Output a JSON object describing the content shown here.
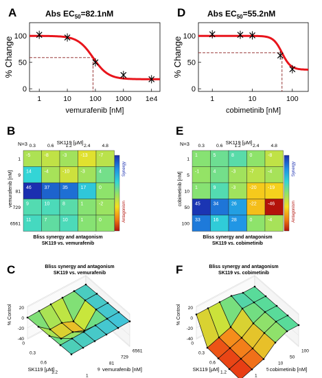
{
  "panels": {
    "A": {
      "letter": "A",
      "title_main": "Abs EC",
      "title_sub": "50",
      "title_value": "=82.1nM"
    },
    "B": {
      "letter": "B",
      "n_label": "N=3",
      "col_title": "SK119 [μM]",
      "row_title": "vemurafenib [nM]",
      "caption_line1": "Bliss synergy and antagonism",
      "caption_line2": "SK119 vs. vemurafenib",
      "synergy_label": "Synergy",
      "antagonism_label": "Antagonism"
    },
    "C": {
      "letter": "C",
      "title_line1": "Bliss synergy and antagonism",
      "title_line2": "SK119 vs. vemurafenib",
      "z_label": "% Control",
      "x_label": "SK119 [μM]",
      "y_label": "vemurafenib [nM]"
    },
    "D": {
      "letter": "D",
      "title_main": "Abs EC",
      "title_sub": "50",
      "title_value": "=55.2nM"
    },
    "E": {
      "letter": "E",
      "n_label": "N=3",
      "col_title": "SK119 [μM]",
      "row_title": "cobimetinib [nM]",
      "caption_line1": "Bliss synergy and antagonism",
      "caption_line2": "SK119 vs. cobimetinib",
      "synergy_label": "Synergy",
      "antagonism_label": "Antagonism"
    },
    "F": {
      "letter": "F",
      "title_line1": "Bliss synergy and antagonism",
      "title_line2": "SK119 vs. cobimetinib",
      "z_label": "% Control",
      "x_label": "SK119 [μM]",
      "y_label": "cobimetinib [nM]"
    }
  },
  "chart_data": [
    {
      "id": "A",
      "type": "line",
      "xlabel": "vemurafenib [nM]",
      "ylabel": "% Change",
      "xscale": "log",
      "xticks": [
        "1",
        "10",
        "100",
        "1000",
        "1e4"
      ],
      "yticks": [
        "0",
        "50",
        "100"
      ],
      "points": {
        "x": [
          1,
          10,
          100,
          1000,
          10000
        ],
        "y": [
          102,
          97,
          50,
          26,
          18
        ]
      },
      "fit": {
        "top": 100,
        "bottom": 18,
        "ec50": 82.1,
        "hill": 1.6
      },
      "ec50": 82.1,
      "ylim": [
        -5,
        125
      ]
    },
    {
      "id": "D",
      "type": "line",
      "xlabel": "cobimetinib [nM]",
      "ylabel": "% Change",
      "xscale": "log",
      "xticks": [
        "1",
        "10",
        "100"
      ],
      "yticks": [
        "0",
        "50",
        "100"
      ],
      "points": {
        "x": [
          1,
          5,
          10,
          50,
          100
        ],
        "y": [
          103,
          102,
          101,
          63,
          37
        ]
      },
      "fit": {
        "top": 100,
        "bottom": 36,
        "ec50": 55.2,
        "hill": 4
      },
      "ec50": 55.2,
      "ylim": [
        -5,
        125
      ]
    },
    {
      "id": "B",
      "type": "heatmap",
      "columns": [
        "0.3",
        "0.6",
        "1.2",
        "2.4",
        "4.8"
      ],
      "rows": [
        "1",
        "9",
        "81",
        "729",
        "6561"
      ],
      "values": [
        [
          -5,
          -8,
          -3,
          -13,
          -7
        ],
        [
          14,
          -4,
          -10,
          -3,
          4
        ],
        [
          46,
          37,
          35,
          17,
          0
        ],
        [
          9,
          10,
          8,
          1,
          -2
        ],
        [
          11,
          7,
          10,
          1,
          0
        ]
      ]
    },
    {
      "id": "E",
      "type": "heatmap",
      "columns": [
        "0.3",
        "0.6",
        "1.2",
        "2.4",
        "4.8"
      ],
      "rows": [
        "1",
        "5",
        "10",
        "50",
        "100"
      ],
      "values": [
        [
          1,
          5,
          8,
          0,
          -8
        ],
        [
          -1,
          4,
          -3,
          -7,
          -4
        ],
        [
          1,
          9,
          -3,
          -20,
          -19
        ],
        [
          45,
          34,
          26,
          -22,
          -46
        ],
        [
          33,
          16,
          28,
          0,
          -4
        ]
      ]
    },
    {
      "id": "C",
      "type": "surface",
      "xlabel": "SK119 [μM]",
      "ylabel": "vemurafenib [nM]",
      "zlabel": "% Control",
      "xticks": [
        "0",
        "0.3",
        "0.6",
        "1.2",
        "2.4"
      ],
      "yticks": [
        "0",
        "1",
        "9",
        "81",
        "729",
        "6561"
      ],
      "zticks": [
        "20",
        "0",
        "-20",
        "-40"
      ]
    },
    {
      "id": "F",
      "type": "surface",
      "xlabel": "SK119 [μM]",
      "ylabel": "cobimetinib [nM]",
      "zlabel": "% Control",
      "xticks": [
        "0",
        "0.3",
        "0.6",
        "1.2",
        "2.4"
      ],
      "yticks": [
        "0",
        "1",
        "5",
        "10",
        "50",
        "100"
      ],
      "zticks": [
        "20",
        "0",
        "-20",
        "-40"
      ]
    }
  ]
}
